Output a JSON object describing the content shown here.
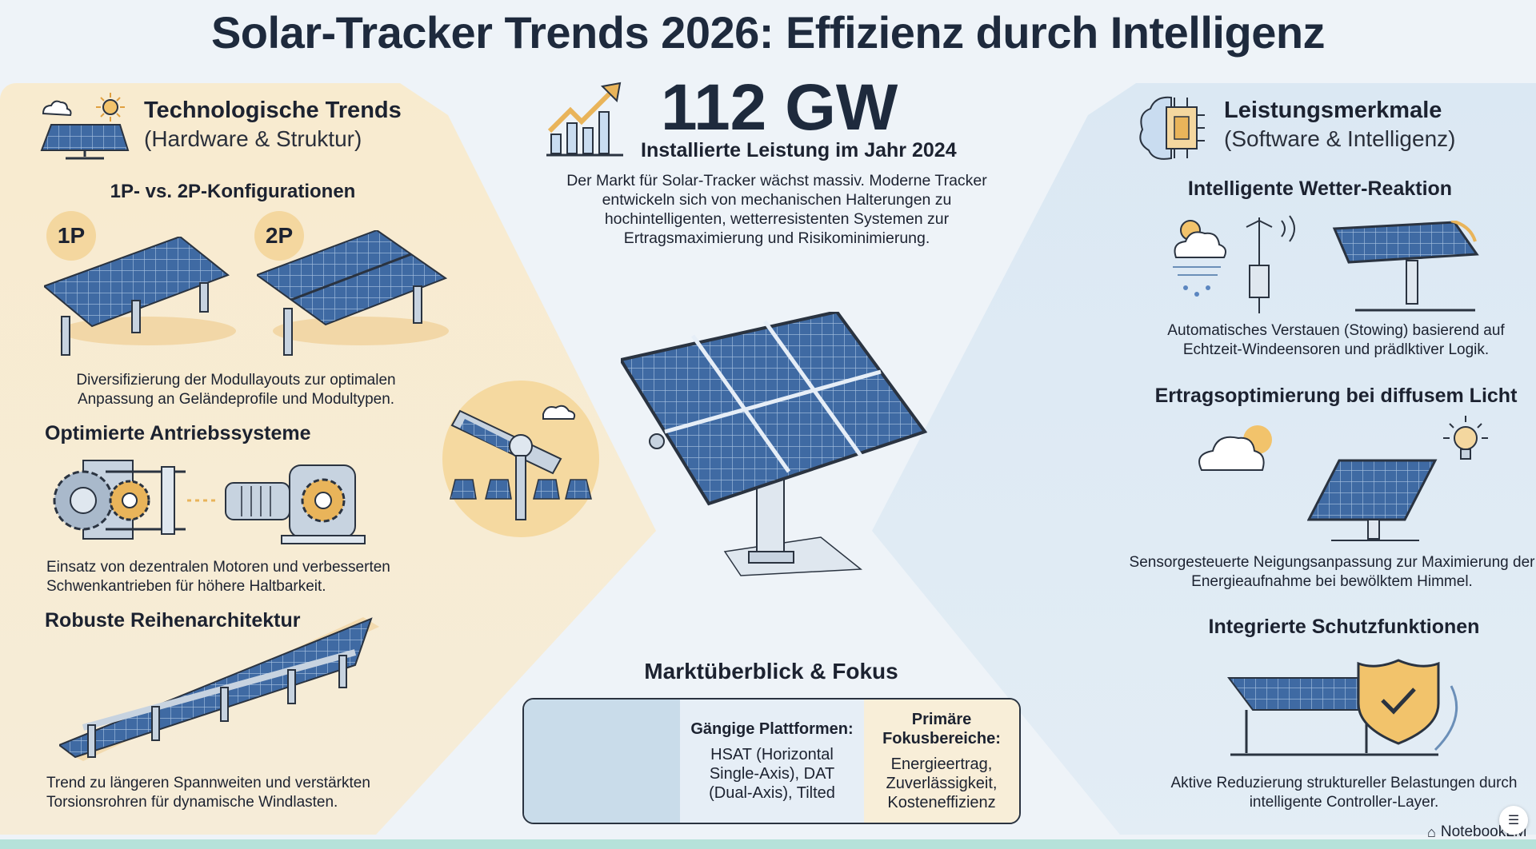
{
  "title": "Solar-Tracker Trends 2026: Effizienz durch Intelligenz",
  "left": {
    "heading": "Technologische Trends",
    "subheading": "(Hardware & Struktur)",
    "config": {
      "title": "1P- vs. 2P-Konfigurationen",
      "badge_1p": "1P",
      "badge_2p": "2P",
      "caption": "Diversifizierung der Modullayouts zur optimalen Anpassung an Geländeprofile und Modultypen."
    },
    "drives": {
      "title": "Optimierte Antriebssysteme",
      "caption": "Einsatz von dezentralen Motoren und verbesserten Schwenkantrieben für höhere Haltbarkeit."
    },
    "rows": {
      "title": "Robuste Reihenarchitektur",
      "caption": "Trend zu längeren Spannweiten und verstärkten Torsionsrohren für dynamische Windlasten."
    }
  },
  "center": {
    "stat_value": "112 GW",
    "stat_label": "Installierte Leistung im Jahr 2024",
    "description": "Der Markt für Solar-Tracker wächst massiv. Moderne Tracker entwickeln sich von mechanischen Halterungen zu hochintelligenten, wetterresistenten Systemen zur Ertragsmaximierung und Risikominimierung.",
    "market": {
      "title": "Marktüberblick & Fokus",
      "platforms_label": "Gängige Plattformen:",
      "platforms_value": "HSAT (Horizontal Single-Axis), DAT (Dual-Axis), Tilted",
      "focus_label": "Primäre Fokusbereiche:",
      "focus_value": "Energieertrag, Zuverlässigkeit, Kosteneffizienz"
    }
  },
  "right": {
    "heading": "Leistungsmerkmale",
    "subheading": "(Software & Intelligenz)",
    "weather": {
      "title": "Intelligente Wetter-Reaktion",
      "caption": "Automatisches Verstauen (Stowing) basierend auf Echtzeit-Windeensoren und prädlktiver Logik."
    },
    "diffuse": {
      "title": "Ertragsoptimierung bei diffusem Licht",
      "caption": "Sensorgesteuerte Neigungsanpassung zur Maximierung der Energieaufnahme bei bewölktem Himmel."
    },
    "protection": {
      "title": "Integrierte Schutzfunktionen",
      "caption": "Aktive Reduzierung struktureller Belastungen durch intelligente Controller-Layer."
    }
  },
  "footer": {
    "brand": "NotebookLM"
  },
  "colors": {
    "navy": "#1e2a3d",
    "beige": "#f8ebcf",
    "lightblue": "#dbe8f3",
    "gold": "#e9b45a",
    "panel": "#3f6aa3"
  }
}
